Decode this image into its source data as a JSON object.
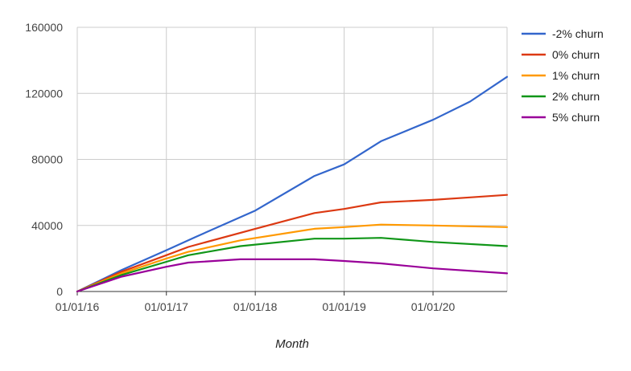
{
  "chart_data": {
    "type": "line",
    "title": "",
    "xlabel": "Month",
    "ylabel": "",
    "xlim": [
      "2016-01-01",
      "2020-10-31"
    ],
    "ylim": [
      0,
      160000
    ],
    "y_ticks": [
      0,
      40000,
      80000,
      120000,
      160000
    ],
    "x_ticks": [
      "2016-01-01",
      "2017-01-01",
      "2018-01-01",
      "2019-01-01",
      "2020-01-01"
    ],
    "x_tick_labels": [
      "01/01/16",
      "01/01/17",
      "01/01/18",
      "01/01/19",
      "01/01/20"
    ],
    "grid": true,
    "legend_position": "right",
    "series": [
      {
        "name": "-2% churn",
        "color": "#3366cc",
        "points": [
          [
            "2016-01-01",
            0
          ],
          [
            "2016-07-01",
            13000
          ],
          [
            "2017-01-01",
            25000
          ],
          [
            "2017-05-01",
            33000
          ],
          [
            "2018-01-01",
            49000
          ],
          [
            "2018-09-01",
            70000
          ],
          [
            "2019-01-01",
            77000
          ],
          [
            "2019-06-01",
            91000
          ],
          [
            "2020-01-01",
            104000
          ],
          [
            "2020-06-01",
            115000
          ],
          [
            "2020-10-31",
            130000
          ]
        ]
      },
      {
        "name": "0% churn",
        "color": "#dc3912",
        "points": [
          [
            "2016-01-01",
            0
          ],
          [
            "2016-07-01",
            12000
          ],
          [
            "2017-01-01",
            22000
          ],
          [
            "2017-04-01",
            27000
          ],
          [
            "2018-01-01",
            38000
          ],
          [
            "2018-09-01",
            47500
          ],
          [
            "2019-01-01",
            50000
          ],
          [
            "2019-06-01",
            54000
          ],
          [
            "2020-01-01",
            55500
          ],
          [
            "2020-06-01",
            57000
          ],
          [
            "2020-10-31",
            58500
          ]
        ]
      },
      {
        "name": "1% churn",
        "color": "#ff9900",
        "points": [
          [
            "2016-01-01",
            0
          ],
          [
            "2016-07-01",
            11000
          ],
          [
            "2017-01-01",
            20000
          ],
          [
            "2017-04-01",
            24000
          ],
          [
            "2017-11-01",
            31000
          ],
          [
            "2018-09-01",
            38000
          ],
          [
            "2019-01-01",
            39000
          ],
          [
            "2019-06-01",
            40500
          ],
          [
            "2020-01-01",
            40000
          ],
          [
            "2020-10-31",
            39000
          ]
        ]
      },
      {
        "name": "2% churn",
        "color": "#109618",
        "points": [
          [
            "2016-01-01",
            0
          ],
          [
            "2016-07-01",
            10000
          ],
          [
            "2017-01-01",
            18000
          ],
          [
            "2017-04-01",
            22000
          ],
          [
            "2017-11-01",
            27500
          ],
          [
            "2018-09-01",
            32000
          ],
          [
            "2019-01-01",
            32000
          ],
          [
            "2019-06-01",
            32500
          ],
          [
            "2020-01-01",
            30000
          ],
          [
            "2020-10-31",
            27500
          ]
        ]
      },
      {
        "name": "5% churn",
        "color": "#990099",
        "points": [
          [
            "2016-01-01",
            0
          ],
          [
            "2016-07-01",
            9000
          ],
          [
            "2017-01-01",
            15000
          ],
          [
            "2017-04-01",
            17500
          ],
          [
            "2017-11-01",
            19500
          ],
          [
            "2018-02-01",
            19500
          ],
          [
            "2018-09-01",
            19500
          ],
          [
            "2019-01-01",
            18500
          ],
          [
            "2019-06-01",
            17000
          ],
          [
            "2020-01-01",
            14000
          ],
          [
            "2020-10-31",
            11000
          ]
        ]
      }
    ]
  }
}
